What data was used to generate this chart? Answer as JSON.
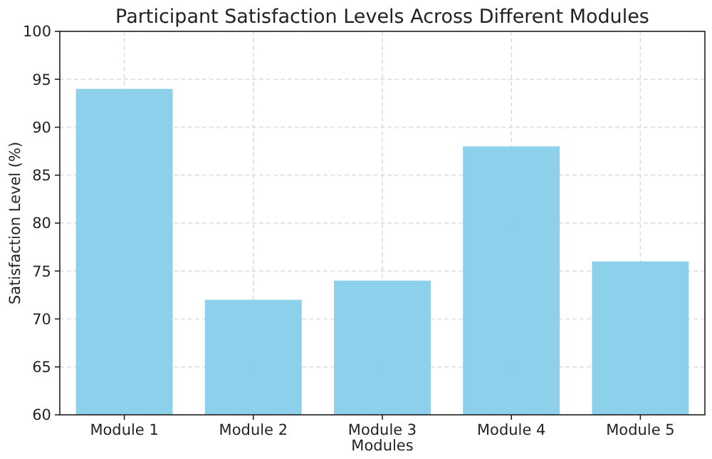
{
  "chart_data": {
    "type": "bar",
    "title": "Participant Satisfaction Levels Across Different Modules",
    "xlabel": "Modules",
    "ylabel": "Satisfaction Level (%)",
    "categories": [
      "Module 1",
      "Module 2",
      "Module 3",
      "Module 4",
      "Module 5"
    ],
    "values": [
      94,
      72,
      74,
      88,
      76
    ],
    "color": "#87ceeb",
    "ylim": [
      60,
      100
    ],
    "yticks": [
      60,
      65,
      70,
      75,
      80,
      85,
      90,
      95,
      100
    ],
    "grid": true
  }
}
